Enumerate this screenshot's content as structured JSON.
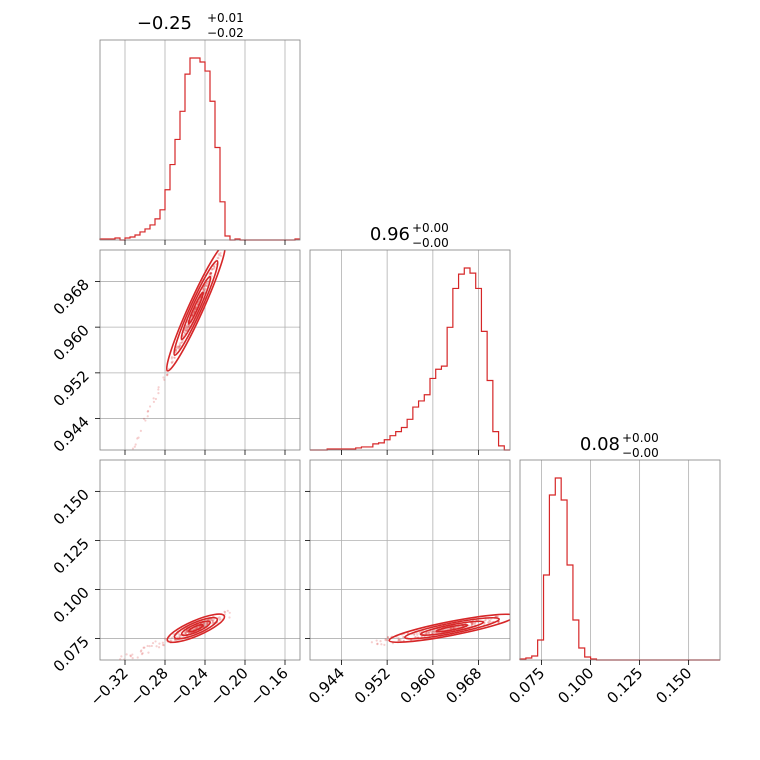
{
  "colors": {
    "line": "#d62728",
    "grid": "#b0b0b0",
    "frame": "#808080"
  },
  "titles": {
    "p0": {
      "value": "−0.25",
      "plus": "+0.01",
      "minus": "−0.02"
    },
    "p1": {
      "value": "0.96",
      "plus": "+0.00",
      "minus": "−0.00"
    },
    "p2": {
      "value": "0.08",
      "plus": "+0.00",
      "minus": "−0.00"
    }
  },
  "chart_data": {
    "type": "corner",
    "parameters": [
      {
        "range": [
          -0.345,
          -0.145
        ],
        "ticks": [
          -0.32,
          -0.28,
          -0.24,
          -0.2,
          -0.16
        ],
        "tick_labels": [
          "−0.32",
          "−0.28",
          "−0.24",
          "−0.20",
          "−0.16"
        ]
      },
      {
        "range": [
          0.9385,
          0.9735
        ],
        "ticks": [
          0.944,
          0.952,
          0.96,
          0.968
        ],
        "tick_labels": [
          "0.944",
          "0.952",
          "0.960",
          "0.968"
        ]
      },
      {
        "range": [
          0.064,
          0.166
        ],
        "ticks": [
          0.075,
          0.1,
          0.125,
          0.15
        ],
        "tick_labels": [
          "0.075",
          "0.100",
          "0.125",
          "0.150"
        ]
      }
    ],
    "histograms": [
      {
        "param": 0,
        "bins": [
          -0.345,
          -0.34,
          -0.335,
          -0.33,
          -0.325,
          -0.32,
          -0.315,
          -0.31,
          -0.305,
          -0.3,
          -0.295,
          -0.29,
          -0.285,
          -0.28,
          -0.275,
          -0.27,
          -0.265,
          -0.26,
          -0.255,
          -0.25,
          -0.245,
          -0.24,
          -0.235,
          -0.23,
          -0.225,
          -0.22,
          -0.215,
          -0.21,
          -0.205,
          -0.2,
          -0.195,
          -0.19,
          -0.185,
          -0.18,
          -0.175,
          -0.17,
          -0.165,
          -0.16,
          -0.155,
          -0.15,
          -0.145
        ],
        "counts": [
          1,
          1,
          1,
          2,
          0,
          2,
          3,
          5,
          8,
          11,
          15,
          21,
          30,
          50,
          75,
          100,
          128,
          165,
          181,
          181,
          177,
          168,
          138,
          92,
          38,
          4,
          0,
          1,
          0,
          0,
          0,
          0,
          0,
          0,
          0,
          0,
          0,
          0,
          0,
          1
        ]
      },
      {
        "param": 1,
        "bins": [
          0.9385,
          0.9395,
          0.9405,
          0.9415,
          0.9425,
          0.9435,
          0.9445,
          0.9455,
          0.9465,
          0.9475,
          0.9485,
          0.9495,
          0.9505,
          0.9515,
          0.9525,
          0.9535,
          0.9545,
          0.9555,
          0.9565,
          0.9575,
          0.9585,
          0.9595,
          0.9605,
          0.9615,
          0.9625,
          0.9635,
          0.9645,
          0.9655,
          0.9665,
          0.9675,
          0.9685,
          0.9695,
          0.9705,
          0.9715,
          0.9725,
          0.9735
        ],
        "counts": [
          0,
          0,
          0,
          1,
          1,
          1,
          1,
          1,
          2,
          3,
          3,
          6,
          7,
          10,
          14,
          18,
          22,
          30,
          42,
          48,
          54,
          70,
          79,
          82,
          120,
          158,
          172,
          178,
          173,
          158,
          116,
          68,
          18,
          4,
          0
        ]
      },
      {
        "param": 2,
        "bins": [
          0.064,
          0.067,
          0.07,
          0.073,
          0.076,
          0.079,
          0.082,
          0.085,
          0.088,
          0.091,
          0.094,
          0.097,
          0.1,
          0.103,
          0.106,
          0.109,
          0.112,
          0.115,
          0.118,
          0.121,
          0.124,
          0.127,
          0.13,
          0.133,
          0.136,
          0.139,
          0.142,
          0.145,
          0.148,
          0.151,
          0.154,
          0.157,
          0.16,
          0.163,
          0.166
        ],
        "counts": [
          1,
          2,
          4,
          20,
          85,
          165,
          182,
          160,
          95,
          40,
          12,
          3,
          1,
          0,
          0,
          0,
          0,
          0,
          0,
          0,
          0,
          0,
          0,
          0,
          0,
          0,
          0,
          0,
          0,
          0,
          0,
          0,
          0,
          0
        ]
      }
    ],
    "joint": [
      {
        "x": 0,
        "y": 1,
        "center": [
          -0.25,
          0.963
        ],
        "direction": [
          0.0182,
          0.00705
        ],
        "sigma_major": 1.0,
        "sigma_minor": 0.00045,
        "scatter_extent": [
          -0.335,
          -0.21
        ],
        "contour_levels": [
          0.5,
          1.0,
          1.5,
          2.0
        ]
      },
      {
        "x": 0,
        "y": 2,
        "center": [
          -0.25,
          0.08
        ],
        "direction": [
          0.0182,
          0.004
        ],
        "sigma_major": 1.0,
        "sigma_minor": 0.0014,
        "scatter_extent": [
          -0.33,
          -0.215
        ],
        "contour_levels": [
          0.5,
          1.0,
          1.5,
          2.0
        ]
      },
      {
        "x": 1,
        "y": 2,
        "center": [
          0.963,
          0.08
        ],
        "direction": [
          0.00705,
          0.004
        ],
        "sigma_major": 1.0,
        "sigma_minor": 0.0012,
        "scatter_extent": [
          0.949,
          0.9715
        ],
        "contour_levels": [
          0.5,
          1.0,
          1.5,
          2.0
        ]
      }
    ],
    "grid": true
  }
}
